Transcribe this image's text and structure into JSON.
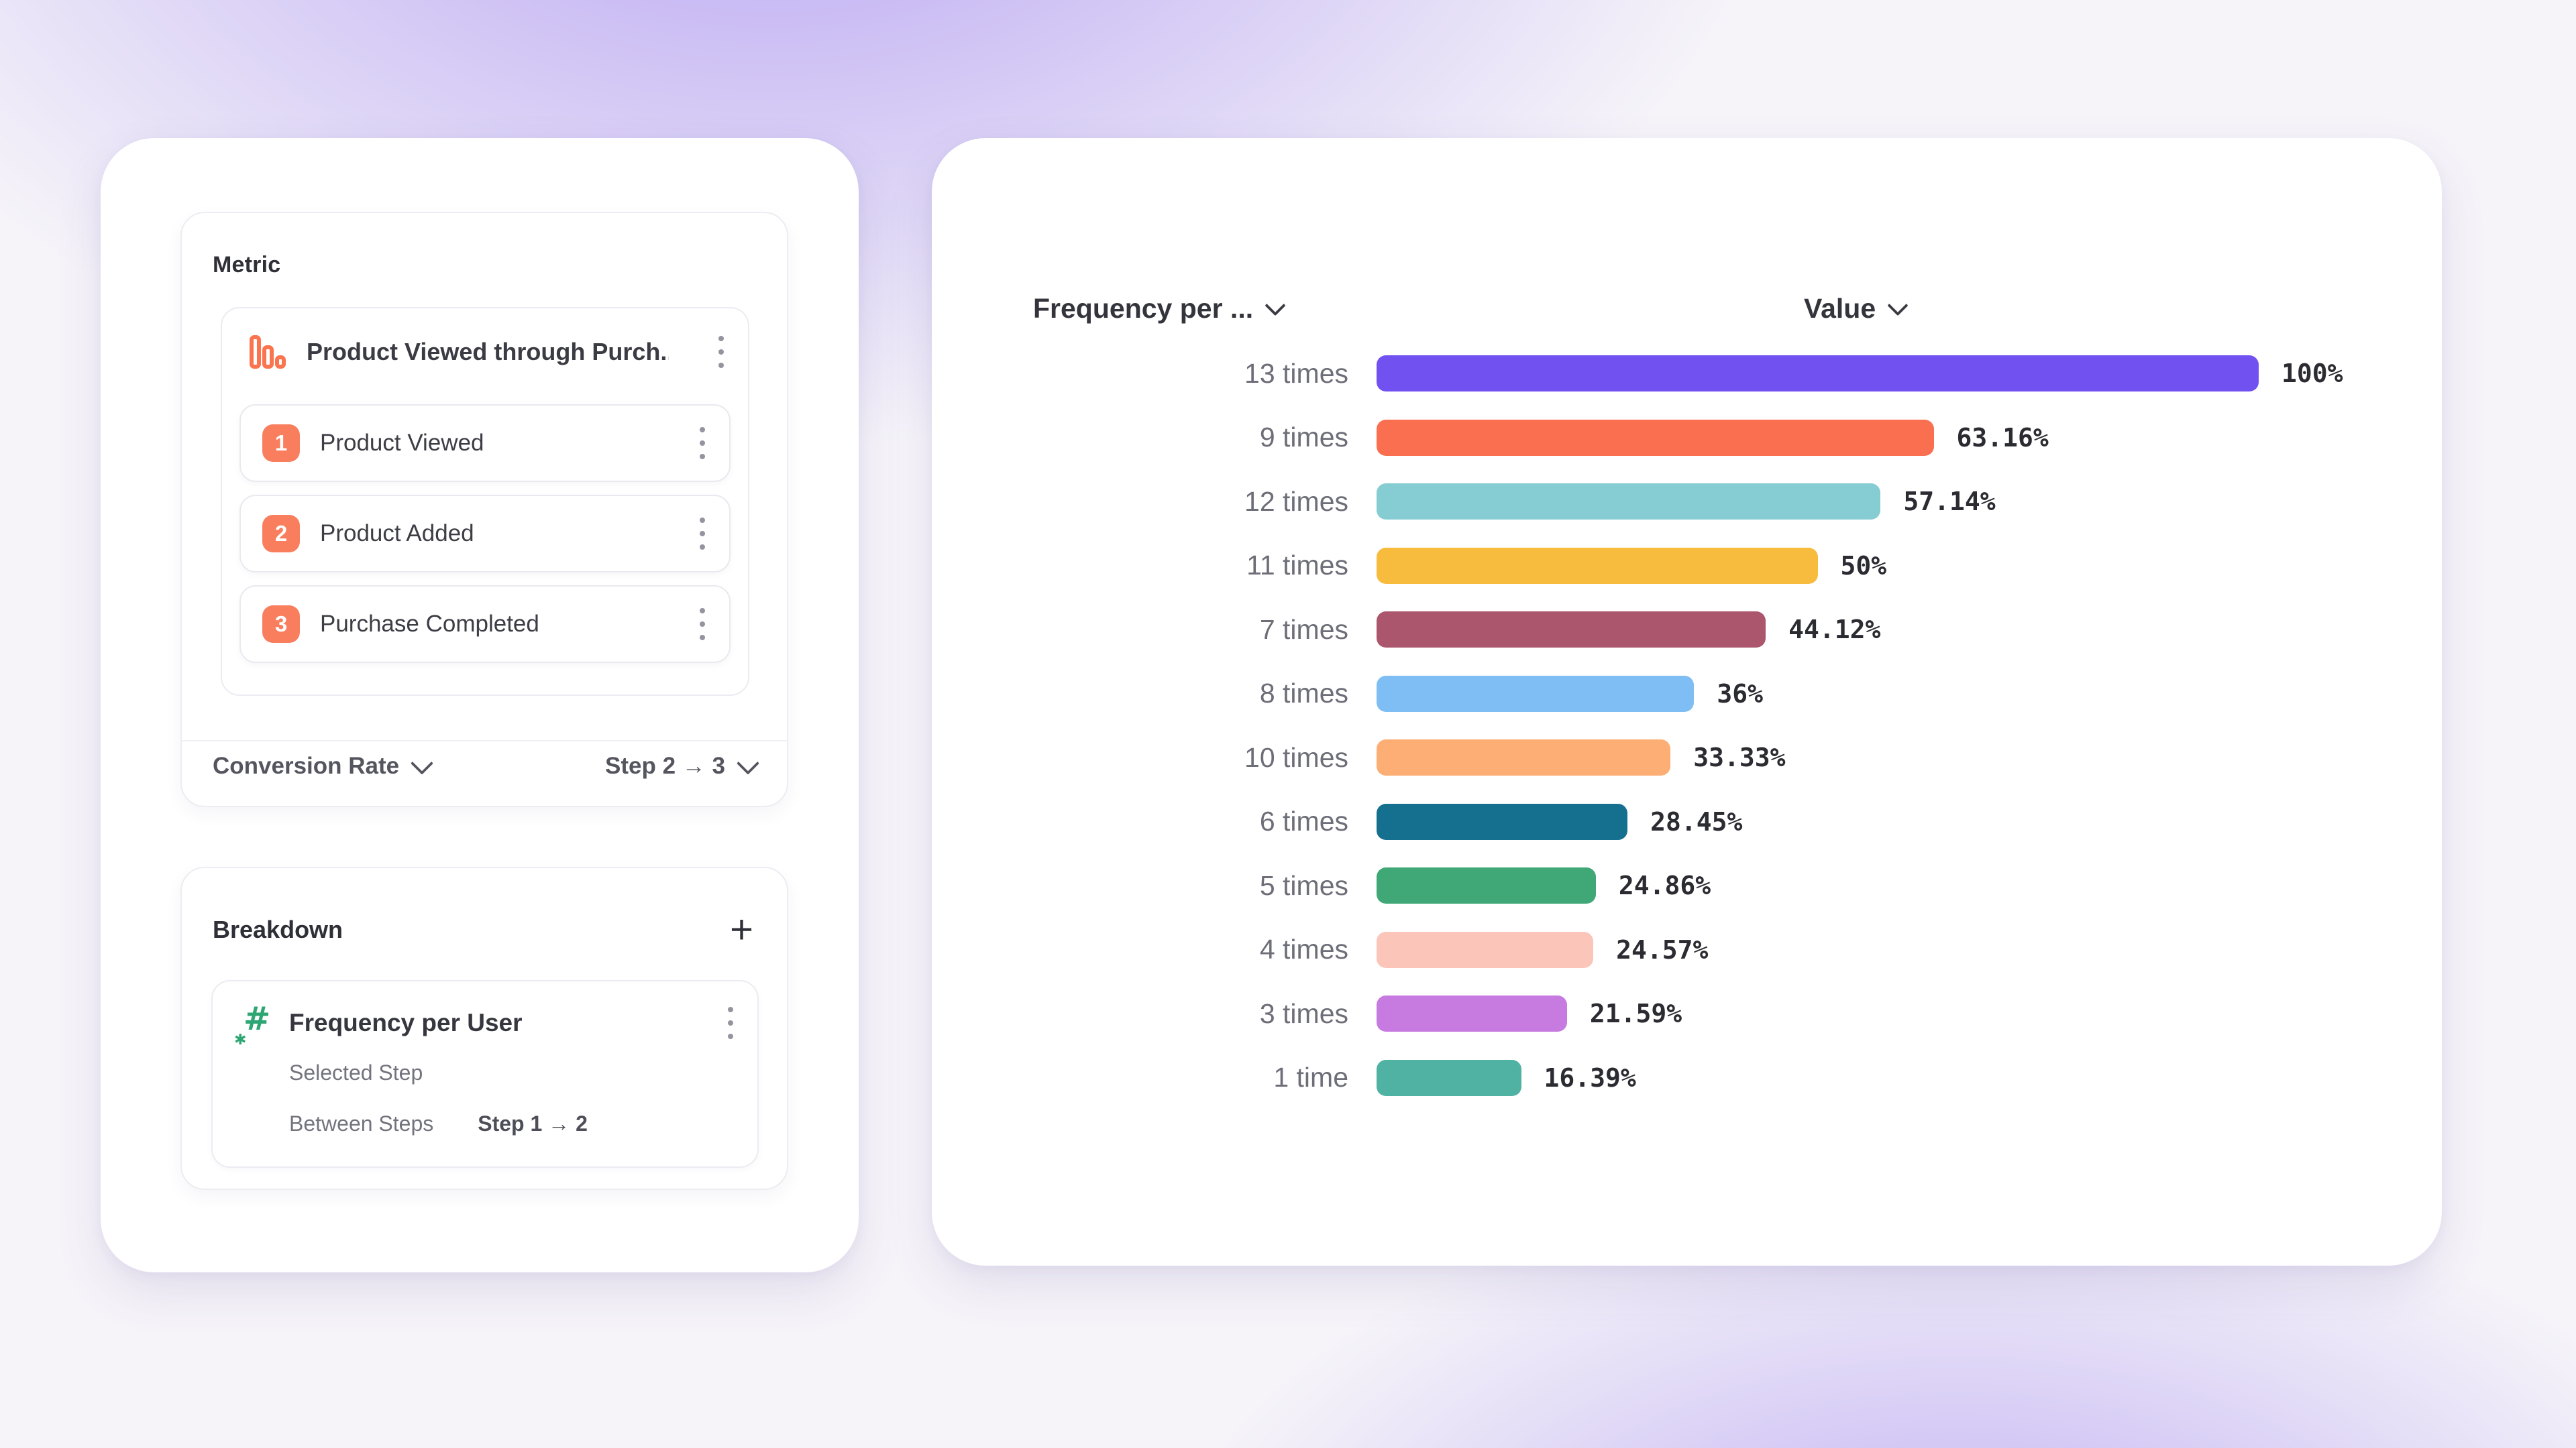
{
  "colors": {
    "accent_coral": "#F97E5D",
    "funnel_icon_stroke": "#F9744F",
    "hash_icon_green": "#2EA673",
    "background_purple": "#805EEB",
    "panel_white": "#FFFFFF"
  },
  "metric_panel": {
    "title": "Metric",
    "funnel": {
      "name": "Product Viewed through Purch...",
      "icon": "funnel-bars-icon",
      "steps": [
        {
          "number": "1",
          "label": "Product Viewed"
        },
        {
          "number": "2",
          "label": "Product Added"
        },
        {
          "number": "3",
          "label": "Purchase Completed"
        }
      ]
    },
    "footer": {
      "measure_label": "Conversion Rate",
      "range_label": "Step 2 → 3"
    }
  },
  "breakdown_panel": {
    "title": "Breakdown",
    "add_label": "+",
    "item": {
      "name": "Frequency per User",
      "selected_step_label": "Selected Step",
      "between_steps_label": "Between Steps",
      "between_steps_value": "Step 1 → 2"
    }
  },
  "chart_data": {
    "type": "bar",
    "orientation": "horizontal",
    "category_header": "Frequency per ...",
    "value_header": "Value",
    "categories": [
      "13 times",
      "9 times",
      "12 times",
      "11 times",
      "7 times",
      "8 times",
      "10 times",
      "6 times",
      "5 times",
      "4 times",
      "3 times",
      "1 time"
    ],
    "values": [
      100,
      63.16,
      57.14,
      50,
      44.12,
      36,
      33.33,
      28.45,
      24.86,
      24.57,
      21.59,
      16.39
    ],
    "value_labels": [
      "100%",
      "63.16%",
      "57.14%",
      "50%",
      "44.12%",
      "36%",
      "33.33%",
      "28.45%",
      "24.86%",
      "24.57%",
      "21.59%",
      "16.39%"
    ],
    "bar_colors": [
      "#7152F1",
      "#FB6F51",
      "#85CCD3",
      "#F7BB3D",
      "#AC566E",
      "#7FBEF4",
      "#FCAE74",
      "#14708E",
      "#3FA876",
      "#FCC5B9",
      "#C77BE0",
      "#50B2A3"
    ],
    "xlim": [
      0,
      100
    ],
    "grid": false,
    "legend": "none",
    "title": ""
  }
}
